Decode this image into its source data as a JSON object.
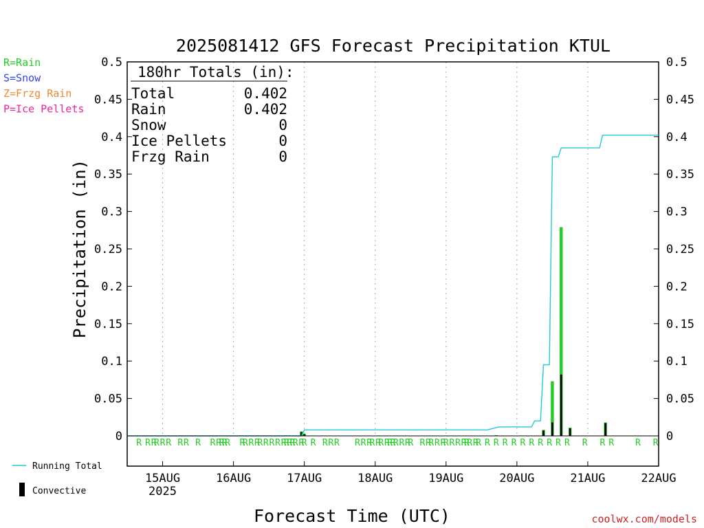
{
  "chart_data": {
    "type": "bar",
    "title": "2025081412 GFS Forecast Precipitation KTUL",
    "xlabel": "Forecast Time (UTC)",
    "ylabel": "Precipitation (in)",
    "ylim": [
      0,
      0.5
    ],
    "yticks": [
      "0",
      "0.05",
      "0.1",
      "0.15",
      "0.2",
      "0.25",
      "0.3",
      "0.35",
      "0.4",
      "0.45",
      "0.5"
    ],
    "xlim_hours": [
      0,
      180
    ],
    "xticks": [
      {
        "hour": 12,
        "label": "15AUG",
        "sublabel": "2025"
      },
      {
        "hour": 36,
        "label": "16AUG",
        "sublabel": ""
      },
      {
        "hour": 60,
        "label": "17AUG",
        "sublabel": ""
      },
      {
        "hour": 84,
        "label": "18AUG",
        "sublabel": ""
      },
      {
        "hour": 108,
        "label": "19AUG",
        "sublabel": ""
      },
      {
        "hour": 132,
        "label": "20AUG",
        "sublabel": ""
      },
      {
        "hour": 156,
        "label": "21AUG",
        "sublabel": ""
      },
      {
        "hour": 180,
        "label": "22AUG",
        "sublabel": ""
      }
    ],
    "grid": true,
    "totals_box": {
      "heading": "180hr Totals (in):",
      "rows": [
        {
          "label": "Total",
          "value": "0.402"
        },
        {
          "label": "Rain",
          "value": "0.402"
        },
        {
          "label": "Snow",
          "value": "0"
        },
        {
          "label": "Ice Pellets",
          "value": "0"
        },
        {
          "label": "Frzg Rain",
          "value": "0"
        }
      ]
    },
    "precip_type_legend": [
      {
        "text": "R=Rain",
        "color": "#22cc22"
      },
      {
        "text": "S=Snow",
        "color": "#3344ee"
      },
      {
        "text": "Z=Frzg Rain",
        "color": "#ee8833"
      },
      {
        "text": "P=Ice Pellets",
        "color": "#ee2299"
      }
    ],
    "series_legend": [
      {
        "name": "Running Total",
        "color": "#22c8d8",
        "kind": "line"
      },
      {
        "name": "Convective",
        "color": "#000000",
        "kind": "bar"
      }
    ],
    "series": [
      {
        "name": "Rain",
        "color": "#22cc22",
        "points": [
          {
            "hour": 59,
            "value": 0.006
          },
          {
            "hour": 60,
            "value": 0.003
          },
          {
            "hour": 125,
            "value": 0.001
          },
          {
            "hour": 141,
            "value": 0.008
          },
          {
            "hour": 144,
            "value": 0.073
          },
          {
            "hour": 147,
            "value": 0.279
          },
          {
            "hour": 150,
            "value": 0.011
          },
          {
            "hour": 162,
            "value": 0.018
          }
        ]
      },
      {
        "name": "Convective",
        "color": "#000000",
        "points": [
          {
            "hour": 59,
            "value": 0.005
          },
          {
            "hour": 60,
            "value": 0.002
          },
          {
            "hour": 141,
            "value": 0.007
          },
          {
            "hour": 144,
            "value": 0.018
          },
          {
            "hour": 147,
            "value": 0.082
          },
          {
            "hour": 150,
            "value": 0.01
          },
          {
            "hour": 162,
            "value": 0.017
          }
        ]
      },
      {
        "name": "Running Total",
        "color": "#22c8d8",
        "kind": "line",
        "points": [
          {
            "hour": 0,
            "value": 0
          },
          {
            "hour": 59,
            "value": 0
          },
          {
            "hour": 60,
            "value": 0.008
          },
          {
            "hour": 122,
            "value": 0.008
          },
          {
            "hour": 124,
            "value": 0.01
          },
          {
            "hour": 126,
            "value": 0.012
          },
          {
            "hour": 137,
            "value": 0.012
          },
          {
            "hour": 138,
            "value": 0.02
          },
          {
            "hour": 140,
            "value": 0.02
          },
          {
            "hour": 141,
            "value": 0.095
          },
          {
            "hour": 143,
            "value": 0.095
          },
          {
            "hour": 144,
            "value": 0.373
          },
          {
            "hour": 146,
            "value": 0.373
          },
          {
            "hour": 147,
            "value": 0.385
          },
          {
            "hour": 160,
            "value": 0.385
          },
          {
            "hour": 161,
            "value": 0.402
          },
          {
            "hour": 180,
            "value": 0.402
          }
        ]
      }
    ],
    "precip_type_markers": {
      "letter": "R",
      "color": "#22cc22",
      "hours": [
        4,
        7,
        9,
        10,
        12,
        14,
        18,
        20,
        24,
        29,
        31,
        32,
        33,
        34,
        39,
        40,
        42,
        44,
        45,
        47,
        49,
        51,
        53,
        54,
        55,
        56,
        57,
        59,
        60,
        63,
        67,
        69,
        71,
        78,
        80,
        82,
        83,
        85,
        86,
        88,
        89,
        90,
        91,
        93,
        95,
        96,
        100,
        102,
        103,
        105,
        107,
        108,
        110,
        112,
        114,
        115,
        116,
        118,
        119,
        122,
        125,
        128,
        131,
        134,
        137,
        140,
        143,
        146,
        149,
        155,
        161,
        164,
        173,
        179
      ]
    },
    "credit": "coolwx.com/models"
  }
}
